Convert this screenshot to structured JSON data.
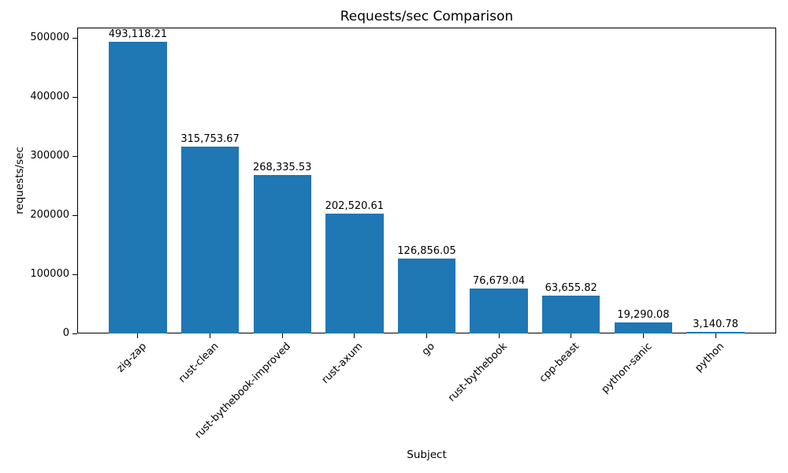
{
  "chart_data": {
    "type": "bar",
    "title": "Requests/sec Comparison",
    "xlabel": "Subject",
    "ylabel": "requests/sec",
    "categories": [
      "zig-zap",
      "rust-clean",
      "rust-bythebook-improved",
      "rust-axum",
      "go",
      "rust-bythebook",
      "cpp-beast",
      "python-sanic",
      "python"
    ],
    "values": [
      493118.21,
      315753.67,
      268335.53,
      202520.61,
      126856.05,
      76679.04,
      63655.82,
      19290.08,
      3140.78
    ],
    "bar_value_labels": [
      "493,118.21",
      "315,753.67",
      "268,335.53",
      "202,520.61",
      "126,856.05",
      "76,679.04",
      "63,655.82",
      "19,290.08",
      "3,140.78"
    ],
    "yticks": [
      0,
      100000,
      200000,
      300000,
      400000,
      500000
    ],
    "ytick_labels": [
      "0",
      "100000",
      "200000",
      "300000",
      "400000",
      "500000"
    ],
    "ylim": [
      0,
      517774
    ],
    "grid": false,
    "bar_color": "#1f77b4",
    "colors": {
      "bar": "#1f77b4",
      "text": "#000000",
      "axis": "#000000",
      "background": "#ffffff"
    }
  }
}
